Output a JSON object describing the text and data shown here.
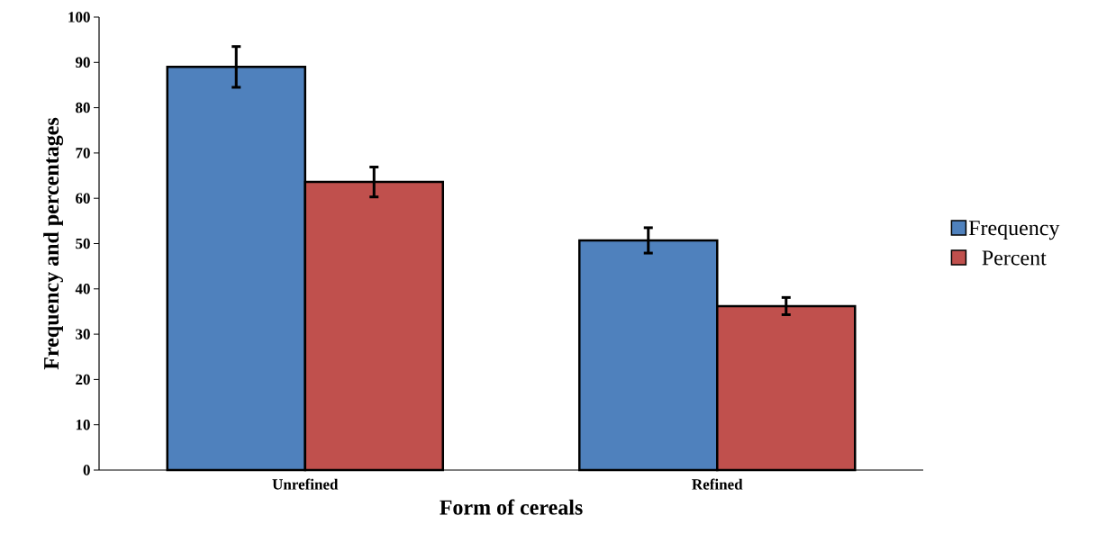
{
  "chart_data": {
    "type": "bar",
    "xlabel": "Form of cereals",
    "ylabel": "Frequency and percentages",
    "categories": [
      "Unrefined",
      "Refined"
    ],
    "series": [
      {
        "name": "Frequency",
        "color": "#4f81bd",
        "values": [
          89,
          50.7
        ],
        "errors": [
          4.5,
          2.8
        ]
      },
      {
        "name": "Percent",
        "color": "#c0504d",
        "values": [
          63.6,
          36.2
        ],
        "errors": [
          3.3,
          1.9
        ]
      }
    ],
    "ylim": [
      0,
      100
    ],
    "yticks": [
      0,
      10,
      20,
      30,
      40,
      50,
      60,
      70,
      80,
      90,
      100
    ],
    "legend": "right"
  }
}
